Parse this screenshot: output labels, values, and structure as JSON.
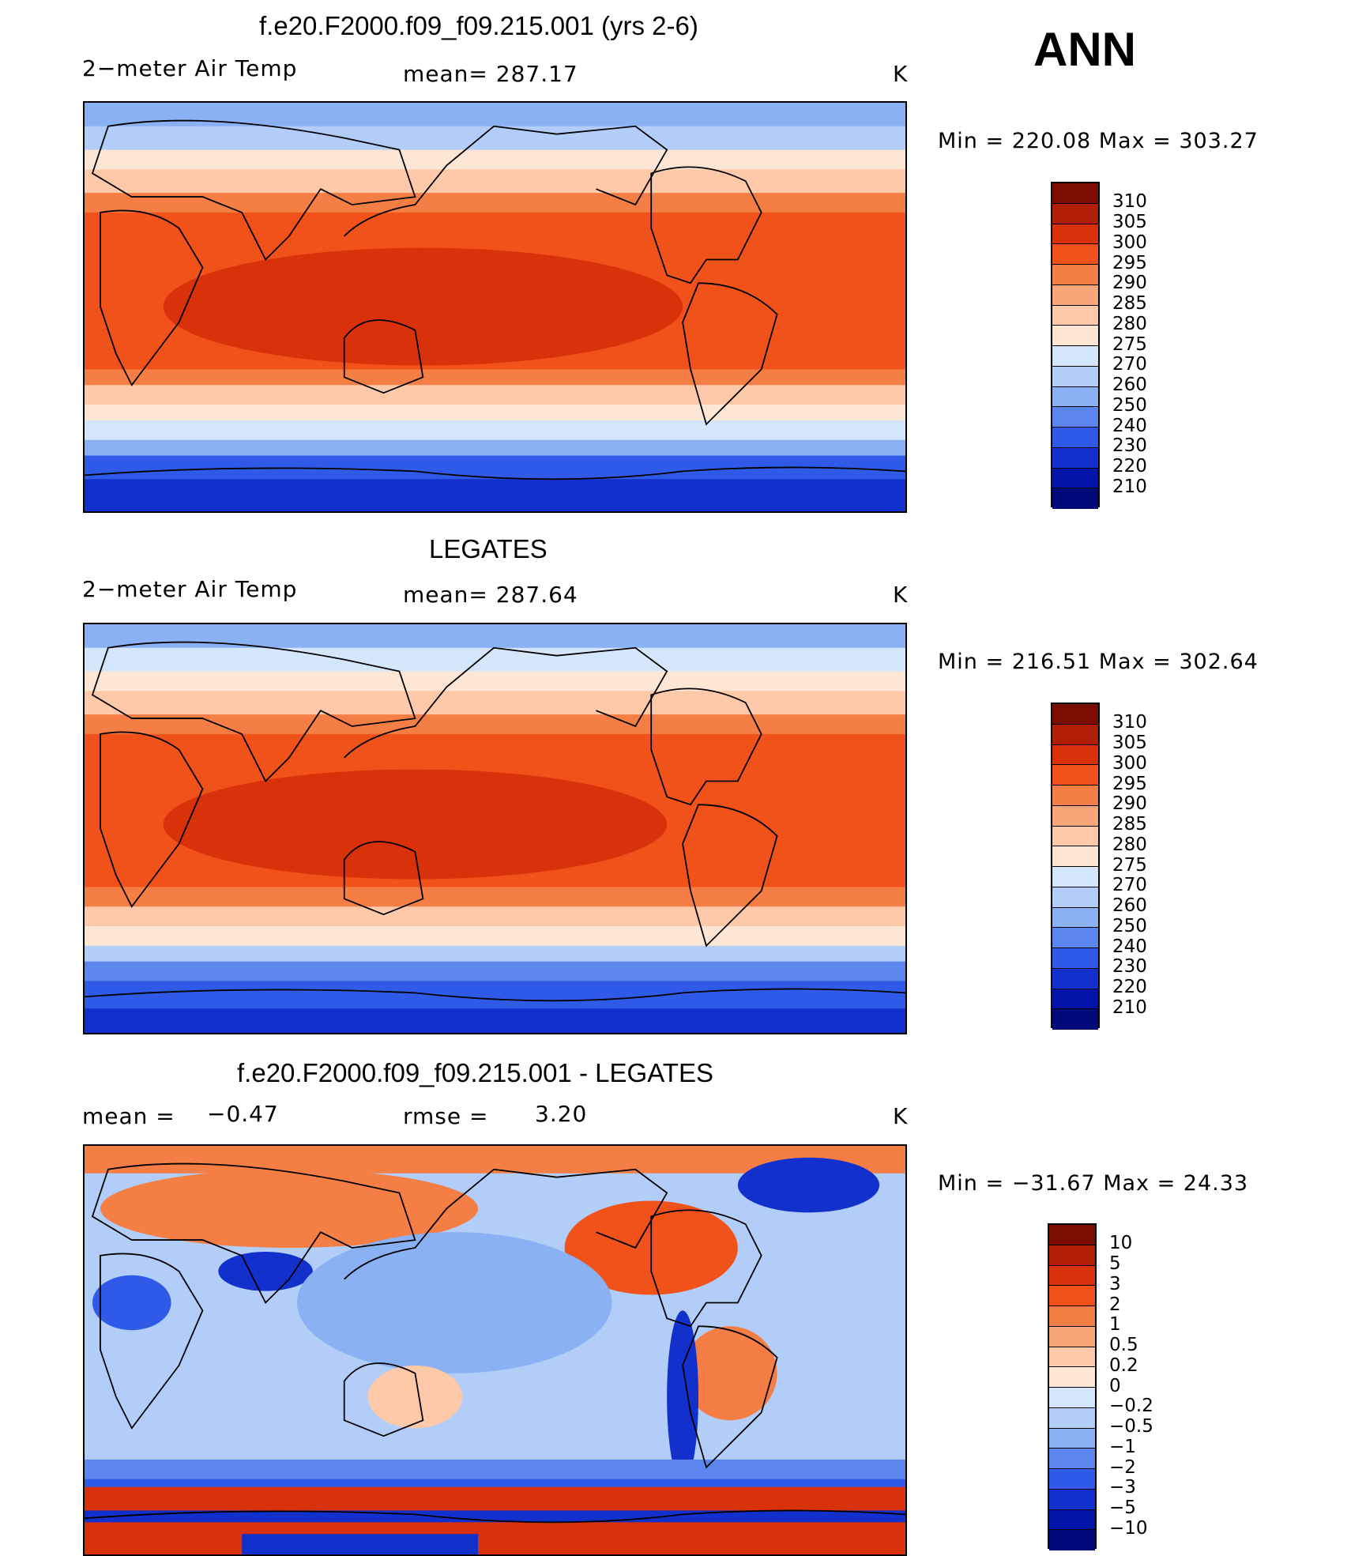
{
  "header": {
    "season": "ANN",
    "units": "K"
  },
  "panels": [
    {
      "title": "f.e20.F2000.f09_f09.215.001 (yrs 2-6)",
      "variable": "2−meter Air Temp",
      "stat": "mean=  287.17",
      "units": "K",
      "minmax": "Min  =  220.08  Max  =  303.27",
      "levels": [
        "310",
        "305",
        "300",
        "295",
        "290",
        "285",
        "280",
        "275",
        "270",
        "260",
        "250",
        "240",
        "230",
        "220",
        "210"
      ],
      "colors": [
        "#7a0d00",
        "#b01e05",
        "#d9320b",
        "#f0521a",
        "#f57e45",
        "#f9a678",
        "#fdc9a8",
        "#fde6d4",
        "#d4e6fb",
        "#b1cdf8",
        "#8ab1f3",
        "#5a86ee",
        "#2f5ae8",
        "#1230cc",
        "#0514a8",
        "#020a7a"
      ]
    },
    {
      "title": "LEGATES",
      "variable": "2−meter Air Temp",
      "stat": "mean=  287.64",
      "units": "K",
      "minmax": "Min  =  216.51  Max  =  302.64",
      "levels": [
        "310",
        "305",
        "300",
        "295",
        "290",
        "285",
        "280",
        "275",
        "270",
        "260",
        "250",
        "240",
        "230",
        "220",
        "210"
      ],
      "colors": [
        "#7a0d00",
        "#b01e05",
        "#d9320b",
        "#f0521a",
        "#f57e45",
        "#f9a678",
        "#fdc9a8",
        "#fde6d4",
        "#d4e6fb",
        "#b1cdf8",
        "#8ab1f3",
        "#5a86ee",
        "#2f5ae8",
        "#1230cc",
        "#0514a8",
        "#020a7a"
      ]
    },
    {
      "title": "f.e20.F2000.f09_f09.215.001 - LEGATES",
      "variable": "mean =",
      "variable_value": "−0.47",
      "stat": "rmse =",
      "stat_value": "3.20",
      "units": "K",
      "minmax": "Min  =  −31.67  Max  =   24.33",
      "levels": [
        "10",
        "5",
        "3",
        "2",
        "1",
        "0.5",
        "0.2",
        "0",
        "−0.2",
        "−0.5",
        "−1",
        "−2",
        "−3",
        "−5",
        "−10"
      ],
      "colors": [
        "#7a0d00",
        "#b01e05",
        "#d9320b",
        "#f0521a",
        "#f57e45",
        "#f9a678",
        "#fdc9a8",
        "#fde6d4",
        "#d4e6fb",
        "#b1cdf8",
        "#8ab1f3",
        "#5a86ee",
        "#2f5ae8",
        "#1230cc",
        "#0514a8",
        "#020a7a"
      ]
    }
  ]
}
